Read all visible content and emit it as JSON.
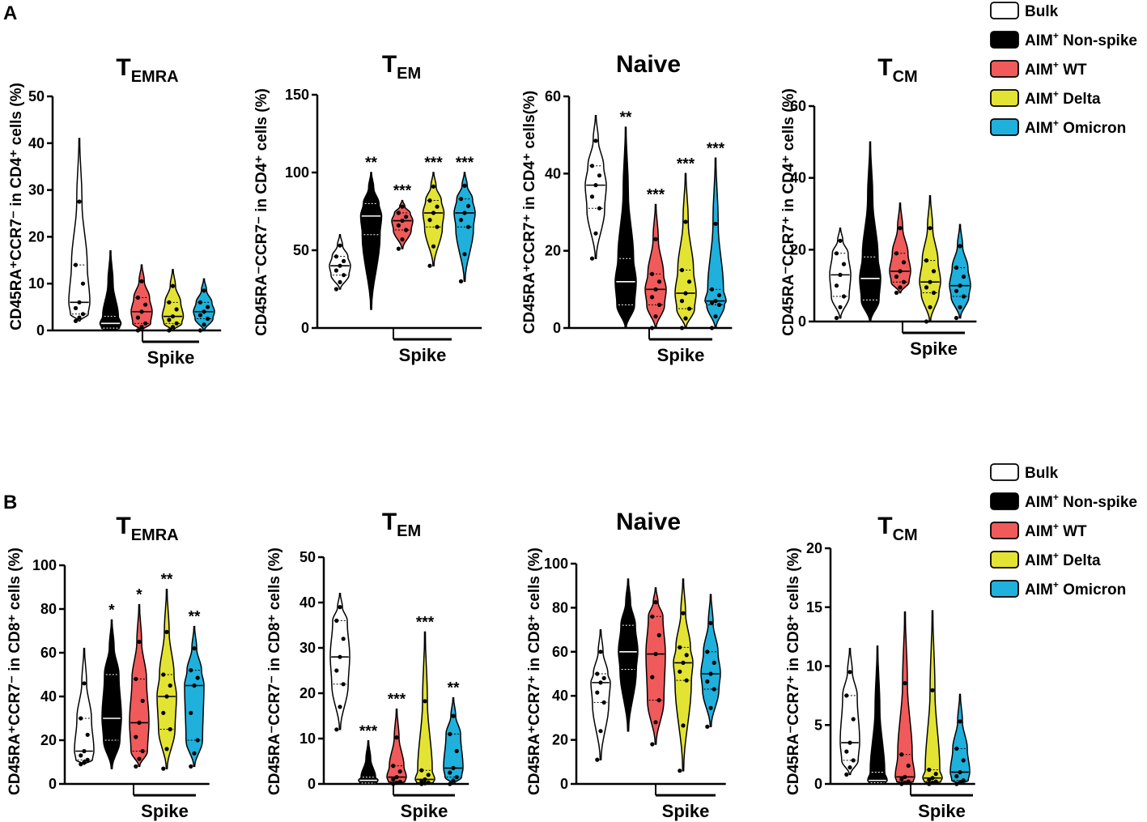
{
  "panel_labels": [
    "A",
    "B"
  ],
  "legend": {
    "entries": [
      {
        "prefix": "",
        "sup": "",
        "suffix": "Bulk",
        "color": "#ffffff"
      },
      {
        "prefix": "AIM",
        "sup": "+",
        "suffix": " Non-spike",
        "color": "#000000"
      },
      {
        "prefix": "AIM",
        "sup": "+",
        "suffix": " WT",
        "color": "#f05a5a"
      },
      {
        "prefix": "AIM",
        "sup": "+",
        "suffix": " Delta",
        "color": "#e3e334"
      },
      {
        "prefix": "AIM",
        "sup": "+",
        "suffix": " Omicron",
        "color": "#1fb0dc"
      }
    ]
  },
  "group_label": "Spike",
  "chart_data": [
    {
      "type": "violin",
      "panel": "A",
      "title_main": "T",
      "title_sub": "EMRA",
      "ylabel": "CD45RA⁺CCR7⁻ in CD4⁺ cells (%)",
      "ylim": [
        0,
        50
      ],
      "yticks": [
        0,
        10,
        20,
        30,
        40,
        50
      ],
      "categories": [
        "Bulk",
        "AIM+ Non-spike",
        "AIM+ WT",
        "AIM+ Delta",
        "AIM+ Omicron"
      ],
      "series": [
        {
          "name": "Bulk",
          "min": 2,
          "q1": 3.5,
          "median": 6,
          "q3": 14,
          "max": 41,
          "significance": ""
        },
        {
          "name": "AIM+ Non-spike",
          "min": 0,
          "q1": 0.5,
          "median": 1.5,
          "q3": 3,
          "max": 17,
          "significance": ""
        },
        {
          "name": "AIM+ WT",
          "min": 0,
          "q1": 1.5,
          "median": 4,
          "q3": 7,
          "max": 14,
          "significance": ""
        },
        {
          "name": "AIM+ Delta",
          "min": 0,
          "q1": 1.5,
          "median": 3,
          "q3": 6,
          "max": 13,
          "significance": ""
        },
        {
          "name": "AIM+ Omicron",
          "min": 0,
          "q1": 2.5,
          "median": 4,
          "q3": 6,
          "max": 11,
          "significance": ""
        }
      ]
    },
    {
      "type": "violin",
      "panel": "A",
      "title_main": "T",
      "title_sub": "EM",
      "ylabel": "CD45RA⁻CCR7⁻ in CD4⁺ cells (%)",
      "ylim": [
        0,
        150
      ],
      "yticks": [
        0,
        50,
        100,
        150
      ],
      "categories": [
        "Bulk",
        "AIM+ Non-spike",
        "AIM+ WT",
        "AIM+ Delta",
        "AIM+ Omicron"
      ],
      "series": [
        {
          "name": "Bulk",
          "min": 25,
          "q1": 34,
          "median": 40,
          "q3": 46,
          "max": 60,
          "significance": ""
        },
        {
          "name": "AIM+ Non-spike",
          "min": 12,
          "q1": 60,
          "median": 72,
          "q3": 80,
          "max": 100,
          "significance": "**"
        },
        {
          "name": "AIM+ WT",
          "min": 51,
          "q1": 63,
          "median": 69,
          "q3": 74,
          "max": 82,
          "significance": "***"
        },
        {
          "name": "AIM+ Delta",
          "min": 40,
          "q1": 65,
          "median": 74,
          "q3": 82,
          "max": 100,
          "significance": "***"
        },
        {
          "name": "AIM+ Omicron",
          "min": 30,
          "q1": 65,
          "median": 74,
          "q3": 83,
          "max": 100,
          "significance": "***"
        }
      ]
    },
    {
      "type": "violin",
      "panel": "A",
      "title_main": "Naive",
      "title_sub": "",
      "ylabel": "CD45RA⁺CCR7⁺ in CD4⁺ cells(%)",
      "ylim": [
        0,
        60
      ],
      "yticks": [
        0,
        20,
        40,
        60
      ],
      "categories": [
        "Bulk",
        "AIM+ Non-spike",
        "AIM+ WT",
        "AIM+ Delta",
        "AIM+ Omicron"
      ],
      "series": [
        {
          "name": "Bulk",
          "min": 18,
          "q1": 31,
          "median": 37,
          "q3": 42,
          "max": 55,
          "significance": ""
        },
        {
          "name": "AIM+ Non-spike",
          "min": 0,
          "q1": 6,
          "median": 12,
          "q3": 18,
          "max": 52,
          "significance": "**"
        },
        {
          "name": "AIM+ WT",
          "min": 0,
          "q1": 6,
          "median": 10,
          "q3": 14,
          "max": 32,
          "significance": "***"
        },
        {
          "name": "AIM+ Delta",
          "min": 0,
          "q1": 5,
          "median": 9,
          "q3": 15,
          "max": 40,
          "significance": "***"
        },
        {
          "name": "AIM+ Omicron",
          "min": 0,
          "q1": 6,
          "median": 7,
          "q3": 10,
          "max": 44,
          "significance": "***"
        }
      ]
    },
    {
      "type": "violin",
      "panel": "A",
      "title_main": "T",
      "title_sub": "CM",
      "ylabel": "CD45RA⁻CCR7⁺ in CD4⁺ cells (%)",
      "ylim": [
        0,
        60
      ],
      "yticks": [
        0,
        20,
        40,
        60
      ],
      "categories": [
        "Bulk",
        "AIM+ Non-spike",
        "AIM+ WT",
        "AIM+ Delta",
        "AIM+ Omicron"
      ],
      "series": [
        {
          "name": "Bulk",
          "min": 1,
          "q1": 7,
          "median": 13,
          "q3": 19,
          "max": 26,
          "significance": ""
        },
        {
          "name": "AIM+ Non-spike",
          "min": 0,
          "q1": 6,
          "median": 12,
          "q3": 18,
          "max": 50,
          "significance": ""
        },
        {
          "name": "AIM+ WT",
          "min": 8,
          "q1": 11,
          "median": 14,
          "q3": 19,
          "max": 33,
          "significance": ""
        },
        {
          "name": "AIM+ Delta",
          "min": 0,
          "q1": 8,
          "median": 11,
          "q3": 17,
          "max": 35,
          "significance": ""
        },
        {
          "name": "AIM+ Omicron",
          "min": 1,
          "q1": 7,
          "median": 10,
          "q3": 15,
          "max": 27,
          "significance": ""
        }
      ]
    },
    {
      "type": "violin",
      "panel": "B",
      "title_main": "T",
      "title_sub": "EMRA",
      "ylabel": "CD45RA⁺CCR7⁻ in CD8⁺ cells (%)",
      "ylim": [
        0,
        100
      ],
      "yticks": [
        0,
        20,
        40,
        60,
        80,
        100
      ],
      "categories": [
        "Bulk",
        "AIM+ Non-spike",
        "AIM+ WT",
        "AIM+ Delta",
        "AIM+ Omicron"
      ],
      "series": [
        {
          "name": "Bulk",
          "min": 9,
          "q1": 11,
          "median": 15,
          "q3": 30,
          "max": 62,
          "significance": ""
        },
        {
          "name": "AIM+ Non-spike",
          "min": 7,
          "q1": 20,
          "median": 30,
          "q3": 50,
          "max": 75,
          "significance": "*"
        },
        {
          "name": "AIM+ WT",
          "min": 8,
          "q1": 15,
          "median": 28,
          "q3": 48,
          "max": 82,
          "significance": "*"
        },
        {
          "name": "AIM+ Delta",
          "min": 7,
          "q1": 25,
          "median": 40,
          "q3": 50,
          "max": 89,
          "significance": "**"
        },
        {
          "name": "AIM+ Omicron",
          "min": 8,
          "q1": 20,
          "median": 45,
          "q3": 52,
          "max": 72,
          "significance": "**"
        }
      ]
    },
    {
      "type": "violin",
      "panel": "B",
      "title_main": "T",
      "title_sub": "EM",
      "ylabel": "CD45RA⁻CCR7⁻ in CD8⁺ cells (%)",
      "ylim": [
        0,
        50
      ],
      "yticks": [
        0,
        10,
        20,
        30,
        40,
        50
      ],
      "categories": [
        "Bulk",
        "AIM+ Non-spike",
        "AIM+ WT",
        "AIM+ Delta",
        "AIM+ Omicron"
      ],
      "series": [
        {
          "name": "Bulk",
          "min": 12,
          "q1": 22,
          "median": 28,
          "q3": 36,
          "max": 42,
          "significance": ""
        },
        {
          "name": "AIM+ Non-spike",
          "min": 0,
          "q1": 0.2,
          "median": 0.8,
          "q3": 1.5,
          "max": 9.5,
          "significance": "***"
        },
        {
          "name": "AIM+ WT",
          "min": 0,
          "q1": 0.5,
          "median": 1.5,
          "q3": 4,
          "max": 16.5,
          "significance": "***"
        },
        {
          "name": "AIM+ Delta",
          "min": 0,
          "q1": 0.3,
          "median": 1,
          "q3": 3,
          "max": 33.5,
          "significance": "***"
        },
        {
          "name": "AIM+ Omicron",
          "min": 0,
          "q1": 1.5,
          "median": 3.5,
          "q3": 11,
          "max": 19,
          "significance": "**"
        }
      ]
    },
    {
      "type": "violin",
      "panel": "B",
      "title_main": "Naive",
      "title_sub": "",
      "ylabel": "CD45RA⁺CCR7⁺ in CD8⁺ cells (%)",
      "ylim": [
        0,
        100
      ],
      "yticks": [
        0,
        20,
        40,
        60,
        80,
        100
      ],
      "categories": [
        "Bulk",
        "AIM+ Non-spike",
        "AIM+ WT",
        "AIM+ Delta",
        "AIM+ Omicron"
      ],
      "series": [
        {
          "name": "Bulk",
          "min": 11,
          "q1": 37,
          "median": 46,
          "q3": 50,
          "max": 70,
          "significance": ""
        },
        {
          "name": "AIM+ Non-spike",
          "min": 24,
          "q1": 52,
          "median": 60,
          "q3": 72,
          "max": 93,
          "significance": ""
        },
        {
          "name": "AIM+ WT",
          "min": 18,
          "q1": 38,
          "median": 59,
          "q3": 76,
          "max": 89,
          "significance": ""
        },
        {
          "name": "AIM+ Delta",
          "min": 6,
          "q1": 47,
          "median": 55,
          "q3": 62,
          "max": 93,
          "significance": ""
        },
        {
          "name": "AIM+ Omicron",
          "min": 26,
          "q1": 43,
          "median": 50,
          "q3": 60,
          "max": 86,
          "significance": ""
        }
      ]
    },
    {
      "type": "violin",
      "panel": "B",
      "title_main": "T",
      "title_sub": "CM",
      "ylabel": "CD45RA⁻CCR7⁺ in CD8⁺ cells (%)",
      "ylim": [
        0,
        20
      ],
      "yticks": [
        0,
        5,
        10,
        15,
        20
      ],
      "categories": [
        "Bulk",
        "AIM+ Non-spike",
        "AIM+ WT",
        "AIM+ Delta",
        "AIM+ Omicron"
      ],
      "series": [
        {
          "name": "Bulk",
          "min": 0.8,
          "q1": 2,
          "median": 3.5,
          "q3": 7.5,
          "max": 11.5,
          "significance": ""
        },
        {
          "name": "AIM+ Non-spike",
          "min": 0,
          "q1": 0.1,
          "median": 0.3,
          "q3": 1,
          "max": 11.7,
          "significance": ""
        },
        {
          "name": "AIM+ WT",
          "min": 0,
          "q1": 0.2,
          "median": 0.6,
          "q3": 2.5,
          "max": 14.6,
          "significance": ""
        },
        {
          "name": "AIM+ Delta",
          "min": 0,
          "q1": 0.2,
          "median": 0.5,
          "q3": 1.2,
          "max": 14.7,
          "significance": ""
        },
        {
          "name": "AIM+ Omicron",
          "min": 0,
          "q1": 0.3,
          "median": 1,
          "q3": 3,
          "max": 7.6,
          "significance": ""
        }
      ]
    }
  ]
}
